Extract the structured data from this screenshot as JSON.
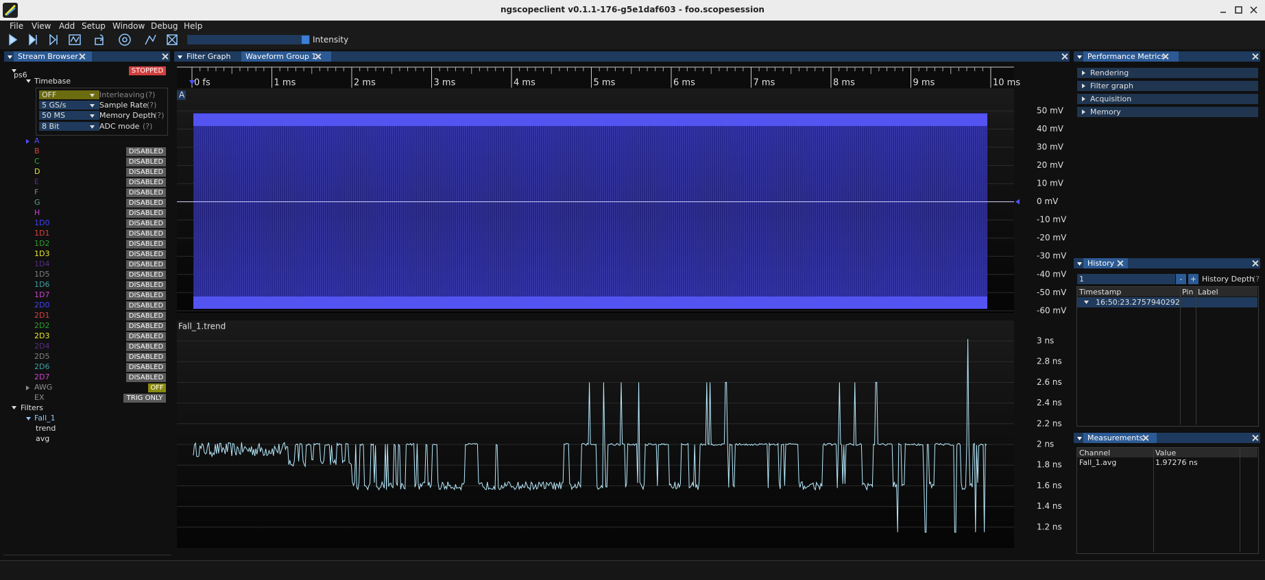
{
  "window": {
    "title": "ngscopeclient v0.1.1-176-g5e1daf603  - foo.scopesession"
  },
  "menu": [
    "File",
    "View",
    "Add",
    "Setup",
    "Window",
    "Debug",
    "Help"
  ],
  "toolbar": {
    "intensity_label": "Intensity"
  },
  "stream_browser": {
    "tab": "Stream Browser",
    "instrument": "ps6",
    "status": "STOPPED",
    "timebase": "Timebase",
    "settings": [
      {
        "value": "OFF",
        "label": "Interleaving",
        "help": "(?)"
      },
      {
        "value": "5 GS/s",
        "label": "Sample Rate",
        "help": "(?)"
      },
      {
        "value": "50 MS",
        "label": "Memory Depth",
        "help": "(?)"
      },
      {
        "value": "8 Bit",
        "label": "ADC mode",
        "help": "(?)"
      }
    ],
    "channels": [
      {
        "name": "A",
        "color": "#5050ff"
      },
      {
        "name": "B",
        "color": "#e04040",
        "state": "DISABLED"
      },
      {
        "name": "C",
        "color": "#30b030",
        "state": "DISABLED"
      },
      {
        "name": "D",
        "color": "#e8e830",
        "state": "DISABLED"
      },
      {
        "name": "E",
        "color": "#5a2a8a",
        "state": "DISABLED"
      },
      {
        "name": "F",
        "color": "#808080",
        "state": "DISABLED"
      },
      {
        "name": "G",
        "color": "#60a080",
        "state": "DISABLED"
      },
      {
        "name": "H",
        "color": "#d040d0",
        "state": "DISABLED"
      },
      {
        "name": "1D0",
        "color": "#4040ff",
        "state": "DISABLED"
      },
      {
        "name": "1D1",
        "color": "#e04040",
        "state": "DISABLED"
      },
      {
        "name": "1D2",
        "color": "#30a030",
        "state": "DISABLED"
      },
      {
        "name": "1D3",
        "color": "#e8e830",
        "state": "DISABLED"
      },
      {
        "name": "1D4",
        "color": "#5a2a8a",
        "state": "DISABLED"
      },
      {
        "name": "1D5",
        "color": "#808080",
        "state": "DISABLED"
      },
      {
        "name": "1D6",
        "color": "#40a0a0",
        "state": "DISABLED"
      },
      {
        "name": "1D7",
        "color": "#d040d0",
        "state": "DISABLED"
      },
      {
        "name": "2D0",
        "color": "#4040ff",
        "state": "DISABLED"
      },
      {
        "name": "2D1",
        "color": "#e04040",
        "state": "DISABLED"
      },
      {
        "name": "2D2",
        "color": "#30a030",
        "state": "DISABLED"
      },
      {
        "name": "2D3",
        "color": "#e8e830",
        "state": "DISABLED"
      },
      {
        "name": "2D4",
        "color": "#5a2a8a",
        "state": "DISABLED"
      },
      {
        "name": "2D5",
        "color": "#808080",
        "state": "DISABLED"
      },
      {
        "name": "2D6",
        "color": "#40a0a0",
        "state": "DISABLED"
      },
      {
        "name": "2D7",
        "color": "#d040d0",
        "state": "DISABLED"
      },
      {
        "name": "AWG",
        "color": "#909090",
        "state": "OFF"
      },
      {
        "name": "EX",
        "color": "#909090",
        "state": "TRIG ONLY"
      }
    ],
    "filters": {
      "label": "Filters",
      "items": [
        {
          "name": "Fall_1",
          "outputs": [
            "trend",
            "avg"
          ]
        }
      ]
    }
  },
  "waveform_area": {
    "tabs": [
      "Filter Graph",
      "Waveform Group 1"
    ],
    "time_ticks": [
      "0 fs",
      "1 ms",
      "2 ms",
      "3 ms",
      "4 ms",
      "5 ms",
      "6 ms",
      "7 ms",
      "8 ms",
      "9 ms",
      "10 ms"
    ],
    "plots": [
      {
        "channel": "A",
        "y_ticks": [
          "50 mV",
          "40 mV",
          "30 mV",
          "20 mV",
          "10 mV",
          "0 mV",
          "-10 mV",
          "-20 mV",
          "-30 mV",
          "-40 mV",
          "-50 mV",
          "-60 mV"
        ]
      },
      {
        "channel": "Fall_1.trend",
        "y_ticks": [
          "3 ns",
          "2.8 ns",
          "2.6 ns",
          "2.4 ns",
          "2.2 ns",
          "2 ns",
          "1.8 ns",
          "1.6 ns",
          "1.4 ns",
          "1.2 ns"
        ]
      }
    ]
  },
  "performance_metrics": {
    "tab": "Performance Metrics",
    "sections": [
      "Rendering",
      "Filter graph",
      "Acquisition",
      "Memory"
    ]
  },
  "history": {
    "tab": "History",
    "depth_value": "1",
    "minus": "-",
    "plus": "+",
    "depth_label": "History Depth",
    "help": "(?)",
    "columns": [
      "Timestamp",
      "Pin",
      "Label"
    ],
    "rows": [
      [
        "16:50:23.2757940292"
      ]
    ]
  },
  "measurements": {
    "tab": "Measurements",
    "columns": [
      "Channel",
      "Value"
    ],
    "rows": [
      [
        "Fall_1.avg",
        "1.97276 ns"
      ]
    ]
  }
}
